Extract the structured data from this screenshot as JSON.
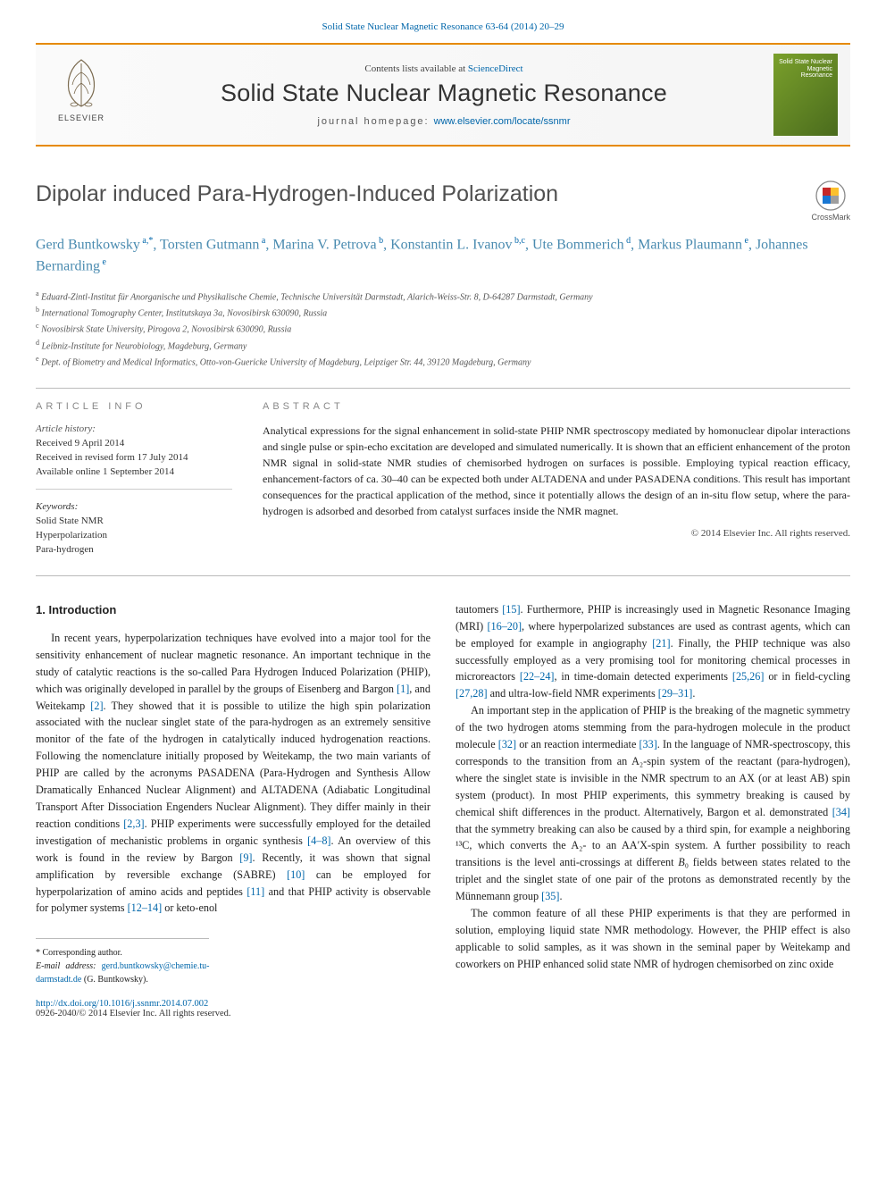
{
  "colors": {
    "link": "#0066aa",
    "accent": "#e68a00",
    "author": "#4a8bb0",
    "heading_gray": "#888",
    "title_gray": "#505050",
    "cover_grad_start": "#7aa02b",
    "cover_grad_end": "#4a6b1d"
  },
  "breadcrumb": {
    "link_text": "Solid State Nuclear Magnetic Resonance 63-64 (2014) 20–29"
  },
  "masthead": {
    "publisher_logo_text": "ELSEVIER",
    "availability_prefix": "Contents lists available at ",
    "availability_link": "ScienceDirect",
    "journal_name": "Solid State Nuclear Magnetic Resonance",
    "homepage_label": "journal homepage: ",
    "homepage_url": "www.elsevier.com/locate/ssnmr",
    "cover_text": "Solid State Nuclear Magnetic Resonance"
  },
  "crossmark_label": "CrossMark",
  "title": "Dipolar induced Para-Hydrogen-Induced Polarization",
  "authors_html": "Gerd Buntkowsky<span class='sup'> a,*</span>, Torsten Gutmann<span class='sup'> a</span>, Marina V. Petrova<span class='sup'> b</span>, Konstantin L. Ivanov<span class='sup'> b,c</span>, Ute Bommerich<span class='sup'> d</span>, Markus Plaumann<span class='sup'> e</span>, Johannes Bernarding<span class='sup'> e</span>",
  "affiliations": [
    {
      "key": "a",
      "text": "Eduard-Zintl-Institut für Anorganische und Physikalische Chemie, Technische Universität Darmstadt, Alarich-Weiss-Str. 8, D-64287 Darmstadt, Germany"
    },
    {
      "key": "b",
      "text": "International Tomography Center, Institutskaya 3a, Novosibirsk 630090, Russia"
    },
    {
      "key": "c",
      "text": "Novosibirsk State University, Pirogova 2, Novosibirsk 630090, Russia"
    },
    {
      "key": "d",
      "text": "Leibniz-Institute for Neurobiology, Magdeburg, Germany"
    },
    {
      "key": "e",
      "text": "Dept. of Biometry and Medical Informatics, Otto-von-Guericke University of Magdeburg, Leipziger Str. 44, 39120 Magdeburg, Germany"
    }
  ],
  "article_info": {
    "heading": "ARTICLE INFO",
    "history_label": "Article history:",
    "received": "Received 9 April 2014",
    "revised": "Received in revised form 17 July 2014",
    "online": "Available online 1 September 2014",
    "keywords_label": "Keywords:",
    "keywords": [
      "Solid State NMR",
      "Hyperpolarization",
      "Para-hydrogen"
    ]
  },
  "abstract": {
    "heading": "ABSTRACT",
    "text": "Analytical expressions for the signal enhancement in solid-state PHIP NMR spectroscopy mediated by homonuclear dipolar interactions and single pulse or spin-echo excitation are developed and simulated numerically. It is shown that an efficient enhancement of the proton NMR signal in solid-state NMR studies of chemisorbed hydrogen on surfaces is possible. Employing typical reaction efficacy, enhancement-factors of ca. 30–40 can be expected both under ALTADENA and under PASADENA conditions. This result has important consequences for the practical application of the method, since it potentially allows the design of an in-situ flow setup, where the para-hydrogen is adsorbed and desorbed from catalyst surfaces inside the NMR magnet.",
    "copyright": "© 2014 Elsevier Inc. All rights reserved."
  },
  "body": {
    "section_heading": "1.  Introduction",
    "col1_p1": "In recent years, hyperpolarization techniques have evolved into a major tool for the sensitivity enhancement of nuclear magnetic resonance. An important technique in the study of catalytic reactions is the so-called Para Hydrogen Induced Polarization (PHIP), which was originally developed in parallel by the groups of Eisenberg and Bargon <a href='#'>[1]</a>, and Weitekamp <a href='#'>[2]</a>. They showed that it is possible to utilize the high spin polarization associated with the nuclear singlet state of the para-hydrogen as an extremely sensitive monitor of the fate of the hydrogen in catalytically induced hydrogenation reactions. Following the nomenclature initially proposed by Weitekamp, the two main variants of PHIP are called by the acronyms PASADENA (Para-Hydrogen and Synthesis Allow Dramatically Enhanced Nuclear Alignment) and ALTADENA (Adiabatic Longitudinal Transport After Dissociation Engenders Nuclear Alignment). They differ mainly in their reaction conditions <a href='#'>[2,3]</a>. PHIP experiments were successfully employed for the detailed investigation of mechanistic problems in organic synthesis <a href='#'>[4–8]</a>. An overview of this work is found in the review by Bargon <a href='#'>[9]</a>. Recently, it was shown that signal amplification by reversible exchange (SABRE) <a href='#'>[10]</a> can be employed for hyperpolarization of amino acids and peptides <a href='#'>[11]</a> and that PHIP activity is observable for polymer systems <a href='#'>[12–14]</a> or keto-enol",
    "col2_p1": "tautomers <a href='#'>[15]</a>. Furthermore, PHIP is increasingly used in Magnetic Resonance Imaging (MRI) <a href='#'>[16–20]</a>, where hyperpolarized substances are used as contrast agents, which can be employed for example in angiography <a href='#'>[21]</a>. Finally, the PHIP technique was also successfully employed as a very promising tool for monitoring chemical processes in microreactors <a href='#'>[22–24]</a>, in time-domain detected experiments <a href='#'>[25,26]</a> or in field-cycling <a href='#'>[27,28]</a> and ultra-low-field NMR experiments <a href='#'>[29–31]</a>.",
    "col2_p2": "An important step in the application of PHIP is the breaking of the magnetic symmetry of the two hydrogen atoms stemming from the para-hydrogen molecule in the product molecule <a href='#'>[32]</a> or an reaction intermediate <a href='#'>[33]</a>. In the language of NMR-spectroscopy, this corresponds to the transition from an A₂-spin system of the reactant (para-hydrogen), where the singlet state is invisible in the NMR spectrum to an AX (or at least AB) spin system (product). In most PHIP experiments, this symmetry breaking is caused by chemical shift differences in the product. Alternatively, Bargon et al. demonstrated <a href='#'>[34]</a> that the symmetry breaking can also be caused by a third spin, for example a neighboring ¹³C, which converts the A₂- to an AA′X-spin system. A further possibility to reach transitions is the level anti-crossings at different <i>B</i>₀ fields between states related to the triplet and the singlet state of one pair of the protons as demonstrated recently by the Münnemann group <a href='#'>[35]</a>.",
    "col2_p3": "The common feature of all these PHIP experiments is that they are performed in solution, employing liquid state NMR methodology. However, the PHIP effect is also applicable to solid samples, as it was shown in the seminal paper by Weitekamp and coworkers on PHIP enhanced solid state NMR of hydrogen chemisorbed on zinc oxide"
  },
  "footnote": {
    "corr_label": "* Corresponding author.",
    "email_label": "E-mail address: ",
    "email": "gerd.buntkowsky@chemie.tu-darmstadt.de",
    "email_paren": " (G. Buntkowsky)."
  },
  "doi": {
    "url": "http://dx.doi.org/10.1016/j.ssnmr.2014.07.002",
    "issn_copy": "0926-2040/© 2014 Elsevier Inc. All rights reserved."
  }
}
